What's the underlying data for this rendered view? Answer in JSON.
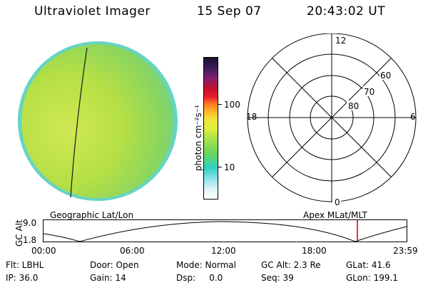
{
  "header": {
    "title": "Ultraviolet Imager",
    "date": "15 Sep 07",
    "time": "20:43:02 UT"
  },
  "colorbar": {
    "label": "photon cm⁻²s⁻¹",
    "ticks": [
      "100",
      "10"
    ]
  },
  "polar": {
    "lat_labels": [
      "60",
      "70",
      "80"
    ],
    "mlt_labels": {
      "top": "12",
      "left": "18",
      "right": "6",
      "bottom": "0"
    }
  },
  "timeline": {
    "left_label": "Geographic Lat/Lon",
    "right_label": "Apex MLat/MLT",
    "ylabel": "GC Alt",
    "yticks": [
      "9.0",
      "1.8"
    ],
    "xticks": [
      "00:00",
      "06:00",
      "12:00",
      "18:00",
      "23:59"
    ]
  },
  "info": {
    "row1": {
      "flt": "Flt: LBHL",
      "door": "Door: Open",
      "mode": "Mode: Normal",
      "gcalt": "GC Alt: 2.3 Re",
      "glat": "GLat:  41.6"
    },
    "row2": {
      "ip": "IP: 36.0",
      "gain": "Gain: 14",
      "dsp": "Dsp:     0.0",
      "seq": "Seq: 39",
      "glon": "GLon: 199.1"
    }
  },
  "colors": {
    "background": "#ffffff",
    "marker": "#cc0000",
    "image_main": "#a8dc3c",
    "image_edge": "#5fd3c0"
  }
}
